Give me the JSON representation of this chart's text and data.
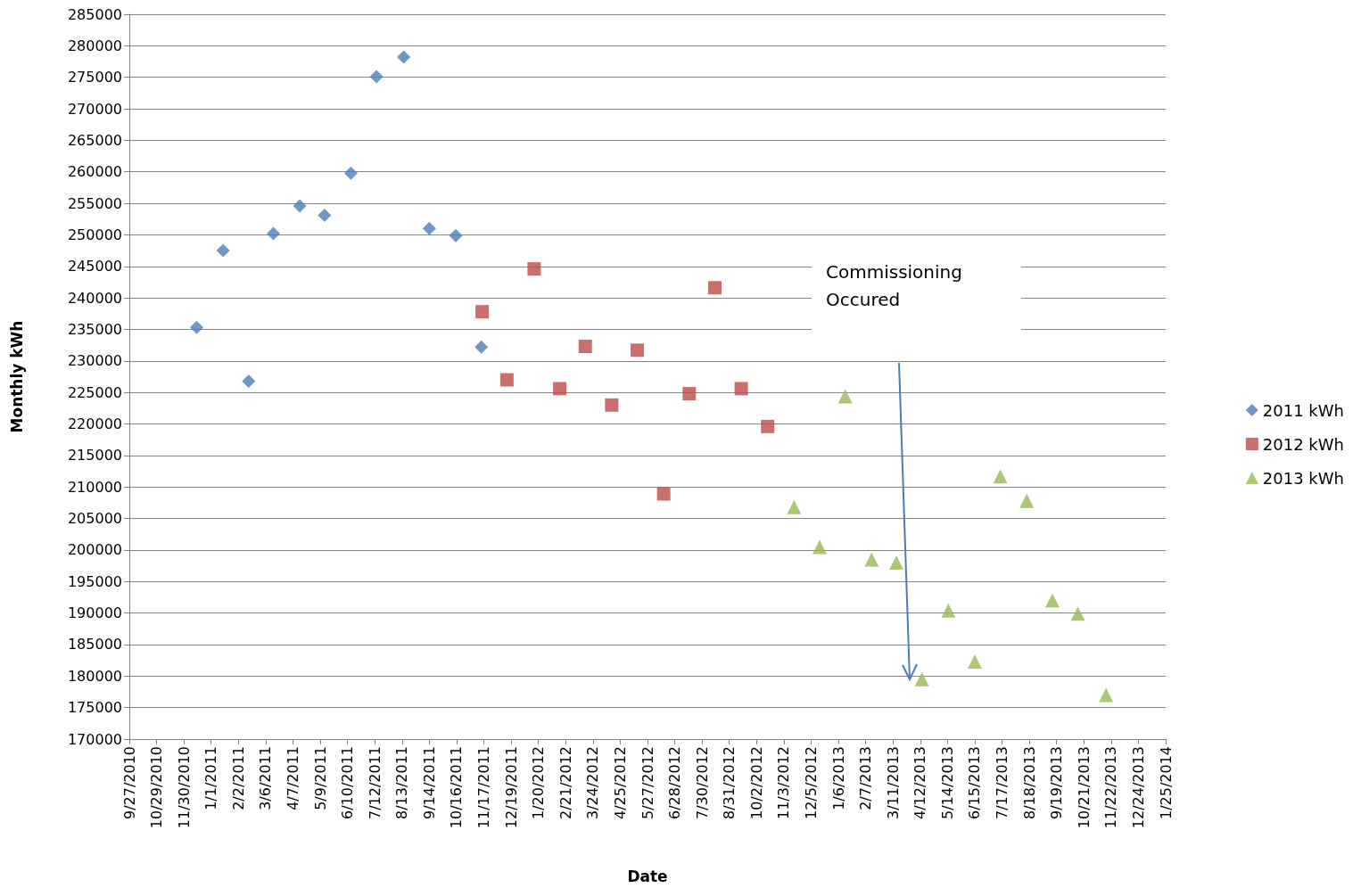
{
  "chart_data": {
    "type": "scatter",
    "xlabel": "Date",
    "ylabel": "Monthly kWh",
    "grid": "y",
    "legend": "right",
    "xlim": [
      "2010-09-27",
      "2014-01-25"
    ],
    "xticks": [
      {
        "value": "2010-09-27",
        "label": "9/27/2010"
      },
      {
        "value": "2010-10-29",
        "label": "10/29/2010"
      },
      {
        "value": "2010-11-30",
        "label": "11/30/2010"
      },
      {
        "value": "2011-01-01",
        "label": "1/1/2011"
      },
      {
        "value": "2011-02-02",
        "label": "2/2/2011"
      },
      {
        "value": "2011-03-06",
        "label": "3/6/2011"
      },
      {
        "value": "2011-04-07",
        "label": "4/7/2011"
      },
      {
        "value": "2011-05-09",
        "label": "5/9/2011"
      },
      {
        "value": "2011-06-10",
        "label": "6/10/2011"
      },
      {
        "value": "2011-07-12",
        "label": "7/12/2011"
      },
      {
        "value": "2011-08-13",
        "label": "8/13/2011"
      },
      {
        "value": "2011-09-14",
        "label": "9/14/2011"
      },
      {
        "value": "2011-10-16",
        "label": "10/16/2011"
      },
      {
        "value": "2011-11-17",
        "label": "11/17/2011"
      },
      {
        "value": "2011-12-19",
        "label": "12/19/2011"
      },
      {
        "value": "2012-01-20",
        "label": "1/20/2012"
      },
      {
        "value": "2012-02-21",
        "label": "2/21/2012"
      },
      {
        "value": "2012-03-24",
        "label": "3/24/2012"
      },
      {
        "value": "2012-04-25",
        "label": "4/25/2012"
      },
      {
        "value": "2012-05-27",
        "label": "5/27/2012"
      },
      {
        "value": "2012-06-28",
        "label": "6/28/2012"
      },
      {
        "value": "2012-07-30",
        "label": "7/30/2012"
      },
      {
        "value": "2012-08-31",
        "label": "8/31/2012"
      },
      {
        "value": "2012-10-02",
        "label": "10/2/2012"
      },
      {
        "value": "2012-11-03",
        "label": "11/3/2012"
      },
      {
        "value": "2012-12-05",
        "label": "12/5/2012"
      },
      {
        "value": "2013-01-06",
        "label": "1/6/2013"
      },
      {
        "value": "2013-02-07",
        "label": "2/7/2013"
      },
      {
        "value": "2013-03-11",
        "label": "3/11/2013"
      },
      {
        "value": "2013-04-12",
        "label": "4/12/2013"
      },
      {
        "value": "2013-05-14",
        "label": "5/14/2013"
      },
      {
        "value": "2013-06-15",
        "label": "6/15/2013"
      },
      {
        "value": "2013-07-17",
        "label": "7/17/2013"
      },
      {
        "value": "2013-08-18",
        "label": "8/18/2013"
      },
      {
        "value": "2013-09-19",
        "label": "9/19/2013"
      },
      {
        "value": "2013-10-21",
        "label": "10/21/2013"
      },
      {
        "value": "2013-11-22",
        "label": "11/22/2013"
      },
      {
        "value": "2013-12-24",
        "label": "12/24/2013"
      },
      {
        "value": "2014-01-25",
        "label": "1/25/2014"
      }
    ],
    "ylim": [
      170000,
      285000
    ],
    "yticks": [
      170000,
      175000,
      180000,
      185000,
      190000,
      195000,
      200000,
      205000,
      210000,
      215000,
      220000,
      225000,
      230000,
      235000,
      240000,
      245000,
      250000,
      255000,
      260000,
      265000,
      270000,
      275000,
      280000,
      285000
    ],
    "annotations": [
      "Commissioning\nOccured"
    ],
    "series": [
      {
        "name": "2011 kWh",
        "color": "#4a7ebb",
        "marker": "diamond",
        "x": [
          "2010-12-15",
          "2011-01-15",
          "2011-02-14",
          "2011-03-15",
          "2011-04-15",
          "2011-05-14",
          "2011-06-14",
          "2011-07-14",
          "2011-08-15",
          "2011-09-14",
          "2011-10-15",
          "2011-11-14"
        ],
        "values": [
          235300,
          247500,
          226800,
          250200,
          254600,
          253100,
          259800,
          275100,
          278200,
          251000,
          249900,
          232200
        ]
      },
      {
        "name": "2012 kWh",
        "color": "#be4b48",
        "marker": "square",
        "x": [
          "2011-11-15",
          "2011-12-14",
          "2012-01-15",
          "2012-02-14",
          "2012-03-15",
          "2012-04-15",
          "2012-05-15",
          "2012-06-15",
          "2012-07-15",
          "2012-08-14",
          "2012-09-14",
          "2012-10-15"
        ],
        "values": [
          237800,
          227000,
          244600,
          225600,
          232300,
          223000,
          231700,
          208900,
          224800,
          241600,
          225600,
          219600
        ]
      },
      {
        "name": "2013 kWh",
        "color": "#98b954",
        "marker": "triangle",
        "x": [
          "2012-11-15",
          "2012-12-15",
          "2013-01-14",
          "2013-02-14",
          "2013-03-15",
          "2013-04-14",
          "2013-05-15",
          "2013-06-15",
          "2013-07-15",
          "2013-08-15",
          "2013-09-14",
          "2013-10-14",
          "2013-11-16"
        ],
        "values": [
          206800,
          200500,
          224400,
          198500,
          198000,
          179500,
          190400,
          182300,
          211700,
          207800,
          192000,
          189900,
          177000
        ]
      }
    ]
  }
}
